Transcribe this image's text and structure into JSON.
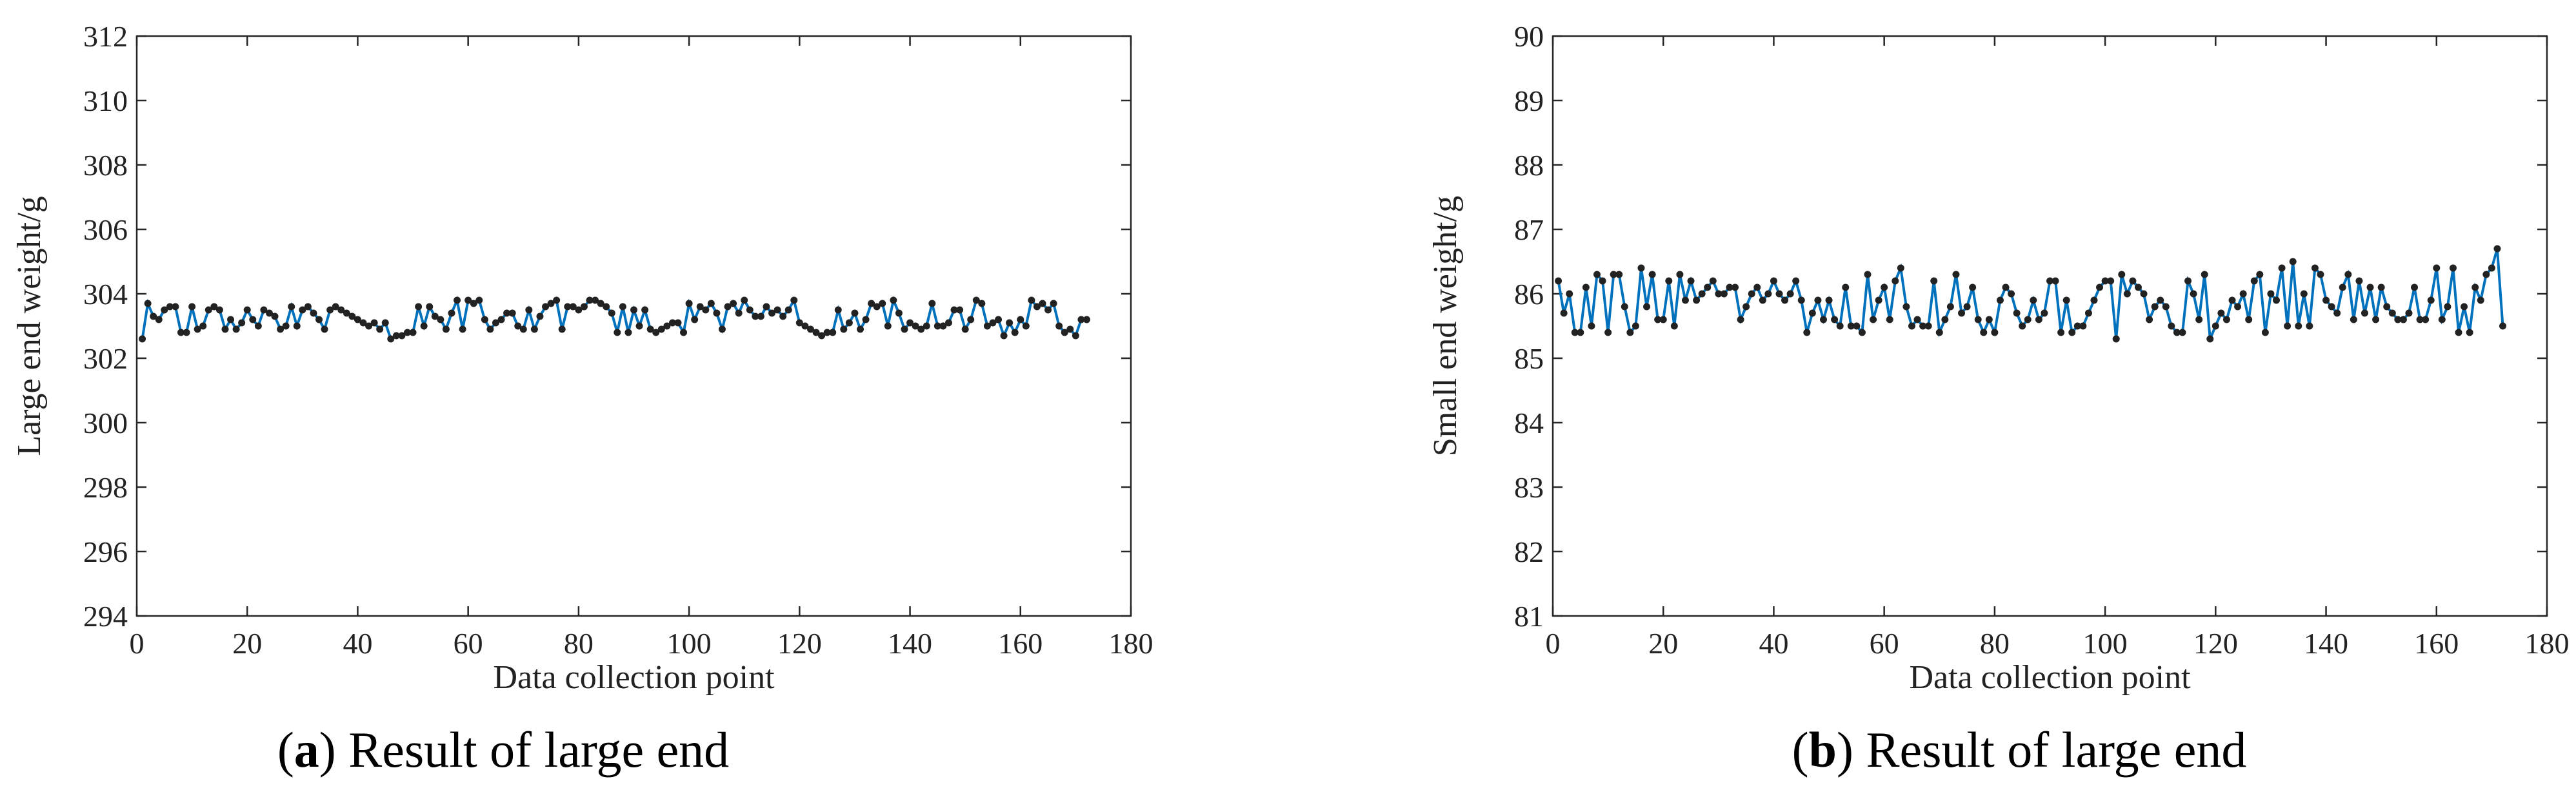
{
  "chart_data": [
    {
      "type": "line",
      "xlabel": "Data collection point",
      "ylabel": "Large end weight/g",
      "caption": [
        "(",
        "a",
        ") Result of large end"
      ],
      "xlim": [
        0,
        180
      ],
      "xticks": [
        0,
        20,
        40,
        60,
        80,
        100,
        120,
        140,
        160,
        180
      ],
      "ylim": [
        294,
        312
      ],
      "yticks": [
        294,
        296,
        298,
        300,
        302,
        304,
        306,
        308,
        310,
        312
      ],
      "series": [
        {
          "color": "#0072bd",
          "marker_color": "#222222",
          "x": [
            1,
            2,
            3,
            4,
            5,
            6,
            7,
            8,
            9,
            10,
            11,
            12,
            13,
            14,
            15,
            16,
            17,
            18,
            19,
            20,
            21,
            22,
            23,
            24,
            25,
            26,
            27,
            28,
            29,
            30,
            31,
            32,
            33,
            34,
            35,
            36,
            37,
            38,
            39,
            40,
            41,
            42,
            43,
            44,
            45,
            46,
            47,
            48,
            49,
            50,
            51,
            52,
            53,
            54,
            55,
            56,
            57,
            58,
            59,
            60,
            61,
            62,
            63,
            64,
            65,
            66,
            67,
            68,
            69,
            70,
            71,
            72,
            73,
            74,
            75,
            76,
            77,
            78,
            79,
            80,
            81,
            82,
            83,
            84,
            85,
            86,
            87,
            88,
            89,
            90,
            91,
            92,
            93,
            94,
            95,
            96,
            97,
            98,
            99,
            100,
            101,
            102,
            103,
            104,
            105,
            106,
            107,
            108,
            109,
            110,
            111,
            112,
            113,
            114,
            115,
            116,
            117,
            118,
            119,
            120,
            121,
            122,
            123,
            124,
            125,
            126,
            127,
            128,
            129,
            130,
            131,
            132,
            133,
            134,
            135,
            136,
            137,
            138,
            139,
            140,
            141,
            142,
            143,
            144,
            145,
            146,
            147,
            148,
            149,
            150,
            151,
            152,
            153,
            154,
            155,
            156,
            157,
            158,
            159,
            160,
            161,
            162,
            163,
            164,
            165,
            166,
            167,
            168,
            169,
            170,
            171,
            172
          ],
          "values": [
            302.6,
            303.7,
            303.3,
            303.2,
            303.5,
            303.6,
            303.6,
            302.8,
            302.8,
            303.6,
            302.9,
            303.0,
            303.5,
            303.6,
            303.5,
            302.9,
            303.2,
            302.9,
            303.1,
            303.5,
            303.2,
            303.0,
            303.5,
            303.4,
            303.3,
            302.9,
            303.0,
            303.6,
            303.0,
            303.5,
            303.6,
            303.4,
            303.2,
            302.9,
            303.5,
            303.6,
            303.5,
            303.4,
            303.3,
            303.2,
            303.1,
            303.0,
            303.1,
            302.9,
            303.1,
            302.6,
            302.7,
            302.7,
            302.8,
            302.8,
            303.6,
            303.0,
            303.6,
            303.3,
            303.2,
            302.9,
            303.4,
            303.8,
            302.9,
            303.8,
            303.7,
            303.8,
            303.2,
            302.9,
            303.1,
            303.2,
            303.4,
            303.4,
            303.0,
            302.9,
            303.5,
            302.9,
            303.3,
            303.6,
            303.7,
            303.8,
            302.9,
            303.6,
            303.6,
            303.5,
            303.6,
            303.8,
            303.8,
            303.7,
            303.6,
            303.4,
            302.8,
            303.6,
            302.8,
            303.5,
            303.0,
            303.5,
            302.9,
            302.8,
            302.9,
            303.0,
            303.1,
            303.1,
            302.8,
            303.7,
            303.2,
            303.6,
            303.5,
            303.7,
            303.4,
            302.9,
            303.6,
            303.7,
            303.4,
            303.8,
            303.5,
            303.3,
            303.3,
            303.6,
            303.4,
            303.5,
            303.3,
            303.5,
            303.8,
            303.1,
            303.0,
            302.9,
            302.8,
            302.7,
            302.8,
            302.8,
            303.5,
            302.9,
            303.1,
            303.4,
            302.9,
            303.2,
            303.7,
            303.6,
            303.7,
            303.0,
            303.8,
            303.4,
            302.9,
            303.1,
            303.0,
            302.9,
            303.0,
            303.7,
            303.0,
            303.0,
            303.1,
            303.5,
            303.5,
            302.9,
            303.2,
            303.8,
            303.7,
            303.0,
            303.1,
            303.2,
            302.7,
            303.1,
            302.8,
            303.2,
            303.0,
            303.8,
            303.6,
            303.7,
            303.5,
            303.7,
            303.0,
            302.8,
            302.9,
            302.7,
            303.2,
            303.2
          ]
        }
      ]
    },
    {
      "type": "line",
      "xlabel": "Data collection point",
      "ylabel": "Small end weight/g",
      "caption": [
        "(",
        "b",
        ") Result of large end"
      ],
      "xlim": [
        0,
        180
      ],
      "xticks": [
        0,
        20,
        40,
        60,
        80,
        100,
        120,
        140,
        160,
        180
      ],
      "ylim": [
        81,
        90
      ],
      "yticks": [
        81,
        82,
        83,
        84,
        85,
        86,
        87,
        88,
        89,
        90
      ],
      "series": [
        {
          "color": "#0072bd",
          "marker_color": "#222222",
          "x": [
            1,
            2,
            3,
            4,
            5,
            6,
            7,
            8,
            9,
            10,
            11,
            12,
            13,
            14,
            15,
            16,
            17,
            18,
            19,
            20,
            21,
            22,
            23,
            24,
            25,
            26,
            27,
            28,
            29,
            30,
            31,
            32,
            33,
            34,
            35,
            36,
            37,
            38,
            39,
            40,
            41,
            42,
            43,
            44,
            45,
            46,
            47,
            48,
            49,
            50,
            51,
            52,
            53,
            54,
            55,
            56,
            57,
            58,
            59,
            60,
            61,
            62,
            63,
            64,
            65,
            66,
            67,
            68,
            69,
            70,
            71,
            72,
            73,
            74,
            75,
            76,
            77,
            78,
            79,
            80,
            81,
            82,
            83,
            84,
            85,
            86,
            87,
            88,
            89,
            90,
            91,
            92,
            93,
            94,
            95,
            96,
            97,
            98,
            99,
            100,
            101,
            102,
            103,
            104,
            105,
            106,
            107,
            108,
            109,
            110,
            111,
            112,
            113,
            114,
            115,
            116,
            117,
            118,
            119,
            120,
            121,
            122,
            123,
            124,
            125,
            126,
            127,
            128,
            129,
            130,
            131,
            132,
            133,
            134,
            135,
            136,
            137,
            138,
            139,
            140,
            141,
            142,
            143,
            144,
            145,
            146,
            147,
            148,
            149,
            150,
            151,
            152,
            153,
            154,
            155,
            156,
            157,
            158,
            159,
            160,
            161,
            162,
            163,
            164,
            165,
            166,
            167,
            168,
            169,
            170,
            171,
            172
          ],
          "values": [
            86.2,
            85.7,
            86.0,
            85.4,
            85.4,
            86.1,
            85.5,
            86.3,
            86.2,
            85.4,
            86.3,
            86.3,
            85.8,
            85.4,
            85.5,
            86.4,
            85.8,
            86.3,
            85.6,
            85.6,
            86.2,
            85.5,
            86.3,
            85.9,
            86.2,
            85.9,
            86.0,
            86.1,
            86.2,
            86.0,
            86.0,
            86.1,
            86.1,
            85.6,
            85.8,
            86.0,
            86.1,
            85.9,
            86.0,
            86.2,
            86.0,
            85.9,
            86.0,
            86.2,
            85.9,
            85.4,
            85.7,
            85.9,
            85.6,
            85.9,
            85.6,
            85.5,
            86.1,
            85.5,
            85.5,
            85.4,
            86.3,
            85.6,
            85.9,
            86.1,
            85.6,
            86.2,
            86.4,
            85.8,
            85.5,
            85.6,
            85.5,
            85.5,
            86.2,
            85.4,
            85.6,
            85.8,
            86.3,
            85.7,
            85.8,
            86.1,
            85.6,
            85.4,
            85.6,
            85.4,
            85.9,
            86.1,
            86.0,
            85.7,
            85.5,
            85.6,
            85.9,
            85.6,
            85.7,
            86.2,
            86.2,
            85.4,
            85.9,
            85.4,
            85.5,
            85.5,
            85.7,
            85.9,
            86.1,
            86.2,
            86.2,
            85.3,
            86.3,
            86.0,
            86.2,
            86.1,
            86.0,
            85.6,
            85.8,
            85.9,
            85.8,
            85.5,
            85.4,
            85.4,
            86.2,
            86.0,
            85.6,
            86.3,
            85.3,
            85.5,
            85.7,
            85.6,
            85.9,
            85.8,
            86.0,
            85.6,
            86.2,
            86.3,
            85.4,
            86.0,
            85.9,
            86.4,
            85.5,
            86.5,
            85.5,
            86.0,
            85.5,
            86.4,
            86.3,
            85.9,
            85.8,
            85.7,
            86.1,
            86.3,
            85.6,
            86.2,
            85.7,
            86.1,
            85.6,
            86.1,
            85.8,
            85.7,
            85.6,
            85.6,
            85.7,
            86.1,
            85.6,
            85.6,
            85.9,
            86.4,
            85.6,
            85.8,
            86.4,
            85.4,
            85.8,
            85.4,
            86.1,
            85.9,
            86.3,
            86.4,
            86.7,
            85.5
          ]
        }
      ]
    }
  ]
}
